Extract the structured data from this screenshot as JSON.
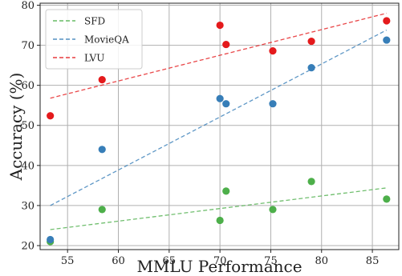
{
  "chart_data": {
    "type": "scatter",
    "xlabel": "MMLU Performance",
    "ylabel": "Accuracy (%)",
    "xlim": [
      52.3,
      87.6
    ],
    "ylim": [
      19,
      80.5
    ],
    "xticks": [
      55,
      60,
      65,
      70,
      75,
      80,
      85
    ],
    "yticks": [
      20,
      30,
      40,
      50,
      60,
      70,
      80
    ],
    "grid": true,
    "legend_position": "top-left",
    "series": [
      {
        "name": "SFD",
        "color": "#4daf4a",
        "points": [
          [
            53.3,
            21.0
          ],
          [
            58.4,
            29.0
          ],
          [
            70.0,
            26.3
          ],
          [
            70.6,
            33.6
          ],
          [
            75.2,
            29.0
          ],
          [
            79.0,
            36.0
          ],
          [
            86.4,
            31.6
          ]
        ],
        "trend": [
          [
            53.3,
            24.0
          ],
          [
            86.4,
            34.4
          ]
        ]
      },
      {
        "name": "MovieQA",
        "color": "#377eb8",
        "points": [
          [
            53.3,
            21.5
          ],
          [
            58.4,
            44.0
          ],
          [
            70.0,
            56.7
          ],
          [
            70.6,
            55.4
          ],
          [
            75.2,
            55.4
          ],
          [
            79.0,
            64.4
          ],
          [
            86.4,
            71.3
          ]
        ],
        "trend": [
          [
            53.3,
            30.0
          ],
          [
            86.4,
            73.8
          ]
        ]
      },
      {
        "name": "LVU",
        "color": "#e41a1c",
        "points": [
          [
            53.3,
            52.4
          ],
          [
            58.4,
            61.4
          ],
          [
            70.0,
            75.0
          ],
          [
            70.6,
            70.2
          ],
          [
            75.2,
            68.6
          ],
          [
            79.0,
            71.0
          ],
          [
            86.4,
            76.1
          ]
        ],
        "trend": [
          [
            53.3,
            56.8
          ],
          [
            86.4,
            78.0
          ]
        ]
      }
    ]
  }
}
